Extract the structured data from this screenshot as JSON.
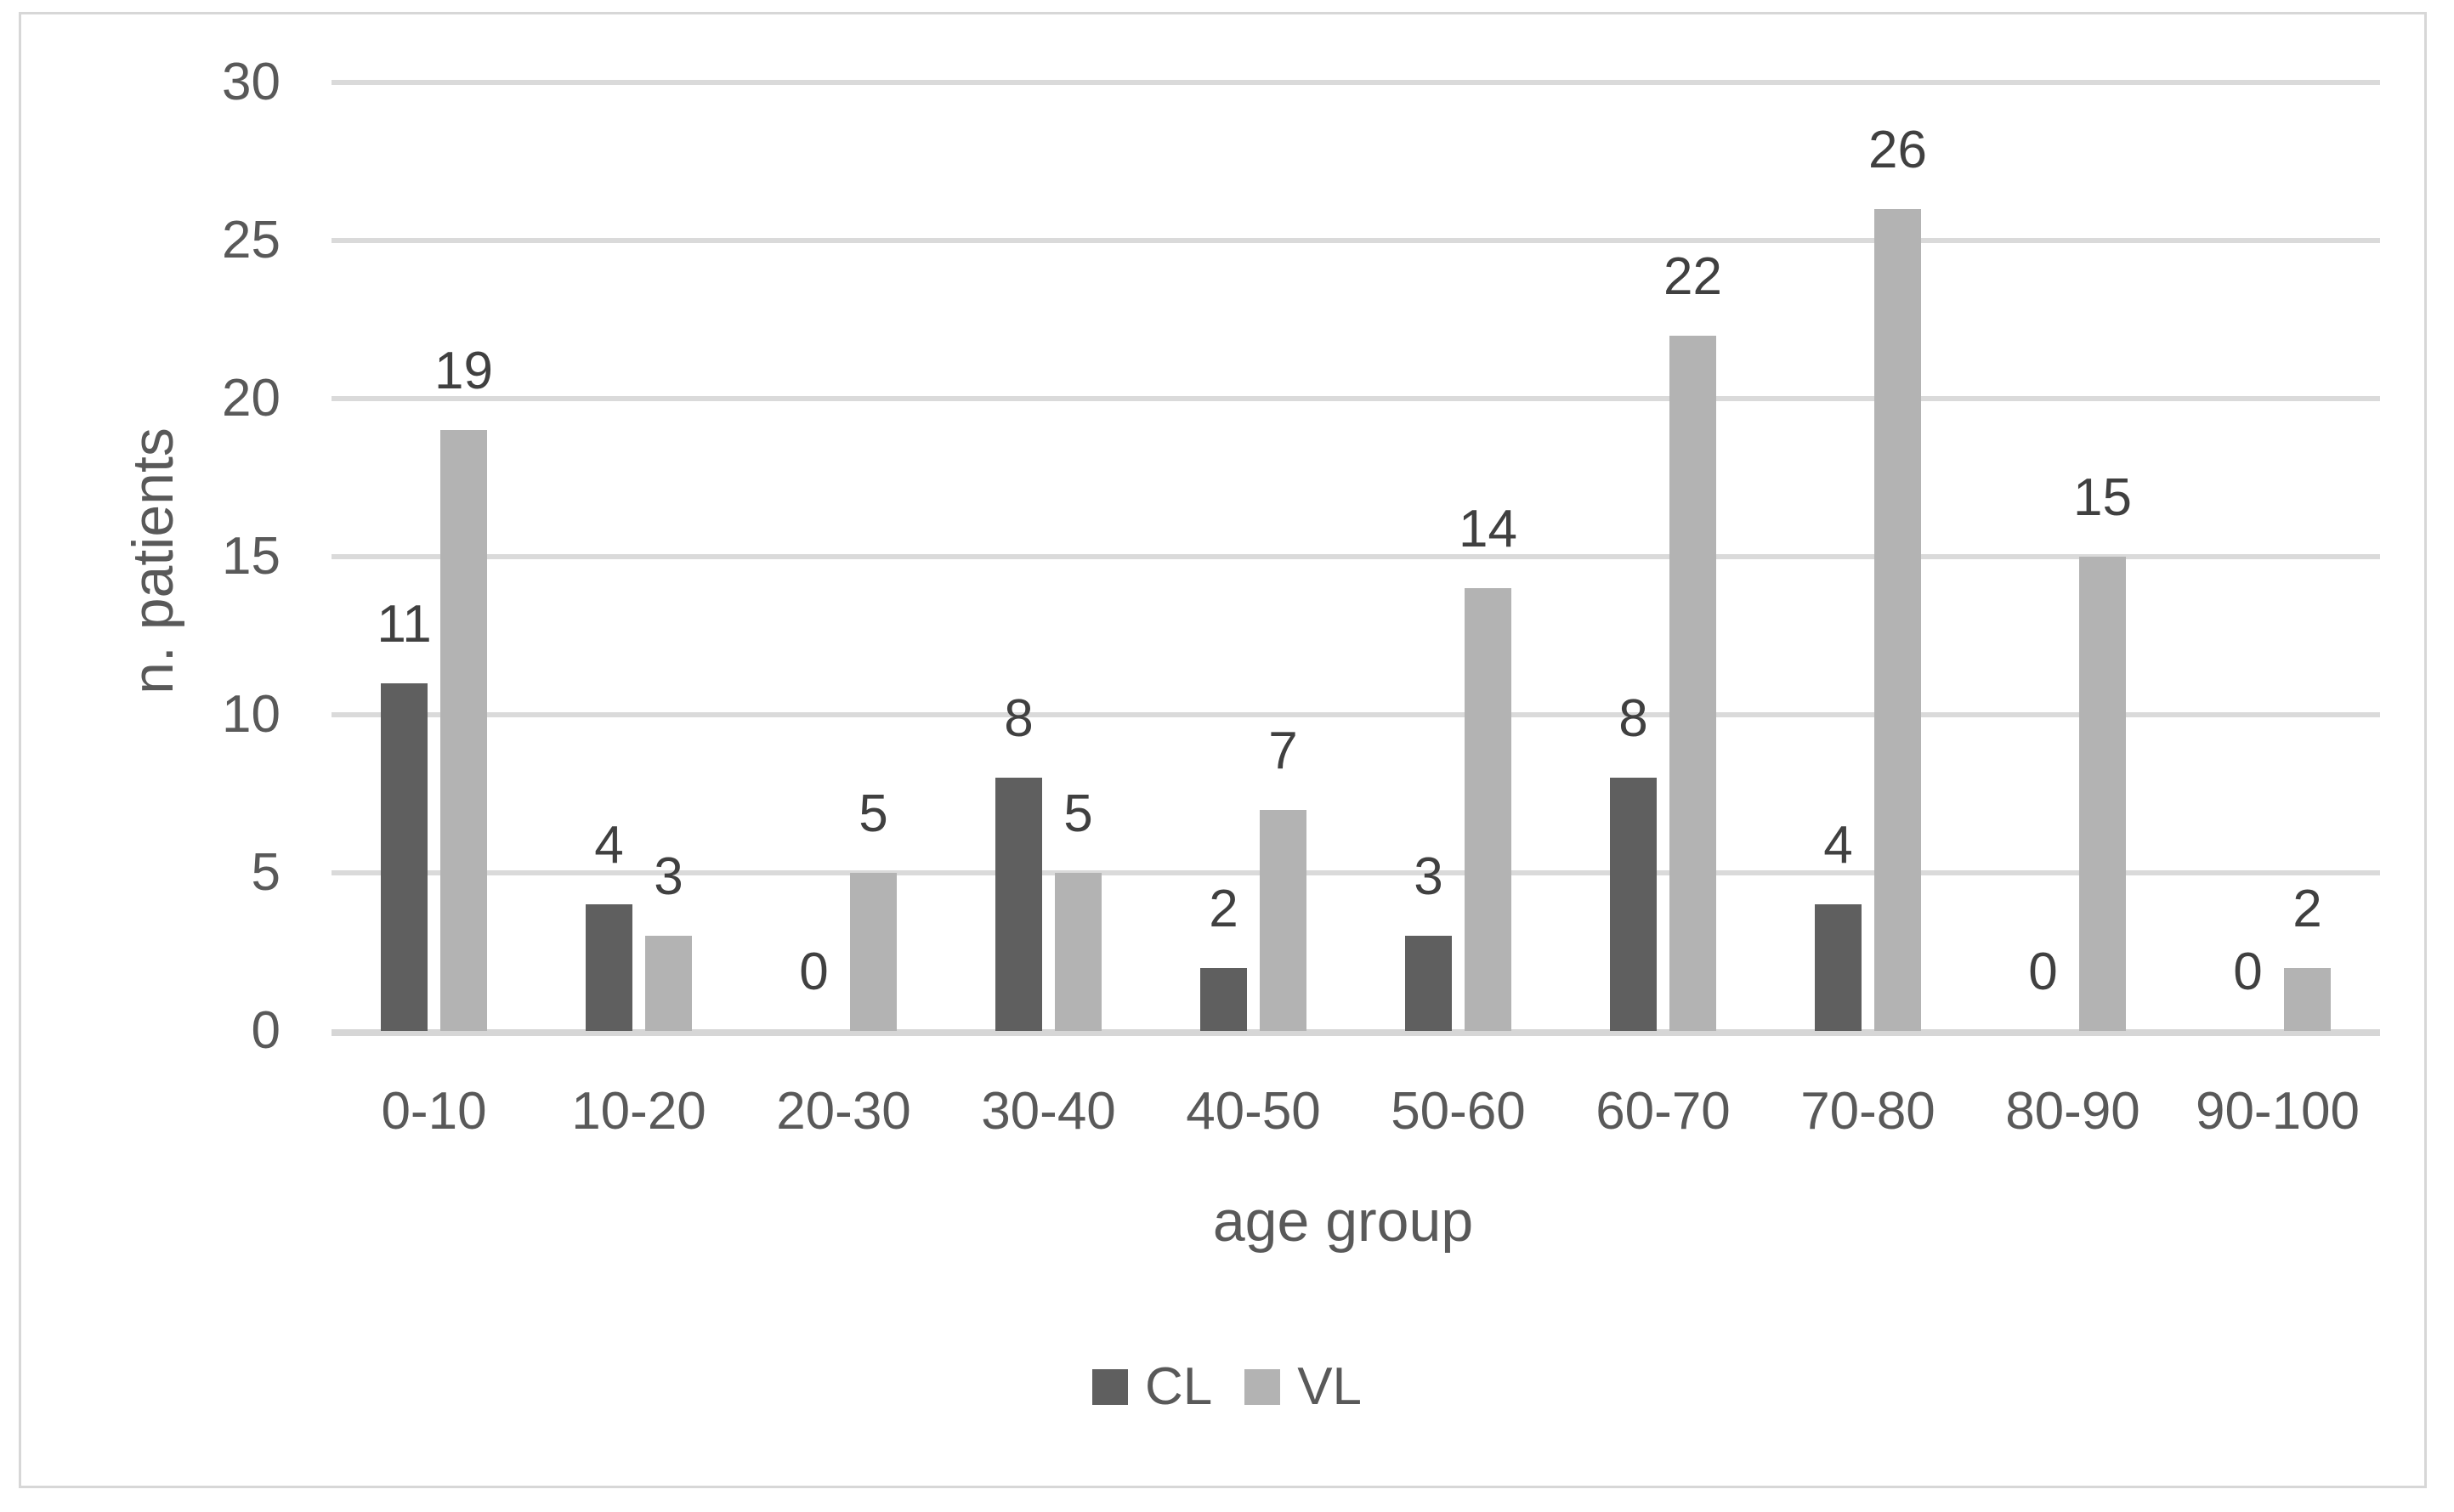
{
  "chart_data": {
    "type": "bar",
    "xlabel": "age group",
    "ylabel": "n. patients",
    "categories": [
      "0-10",
      "10-20",
      "20-30",
      "30-40",
      "40-50",
      "50-60",
      "60-70",
      "70-80",
      "80-90",
      "90-100"
    ],
    "series": [
      {
        "name": "CL",
        "color": "#5f5f5f",
        "values": [
          11,
          4,
          0,
          8,
          2,
          3,
          8,
          4,
          0,
          0
        ]
      },
      {
        "name": "VL",
        "color": "#b3b3b3",
        "values": [
          19,
          3,
          5,
          5,
          7,
          14,
          22,
          26,
          15,
          2
        ]
      }
    ],
    "y_ticks": [
      0,
      5,
      10,
      15,
      20,
      25,
      30
    ],
    "ylim": [
      0,
      30
    ],
    "data_labels": true,
    "grid": "horizontal",
    "legend_position": "bottom",
    "gridline_color": "#dadada",
    "text_color": "#595959",
    "data_label_color": "#404040"
  }
}
